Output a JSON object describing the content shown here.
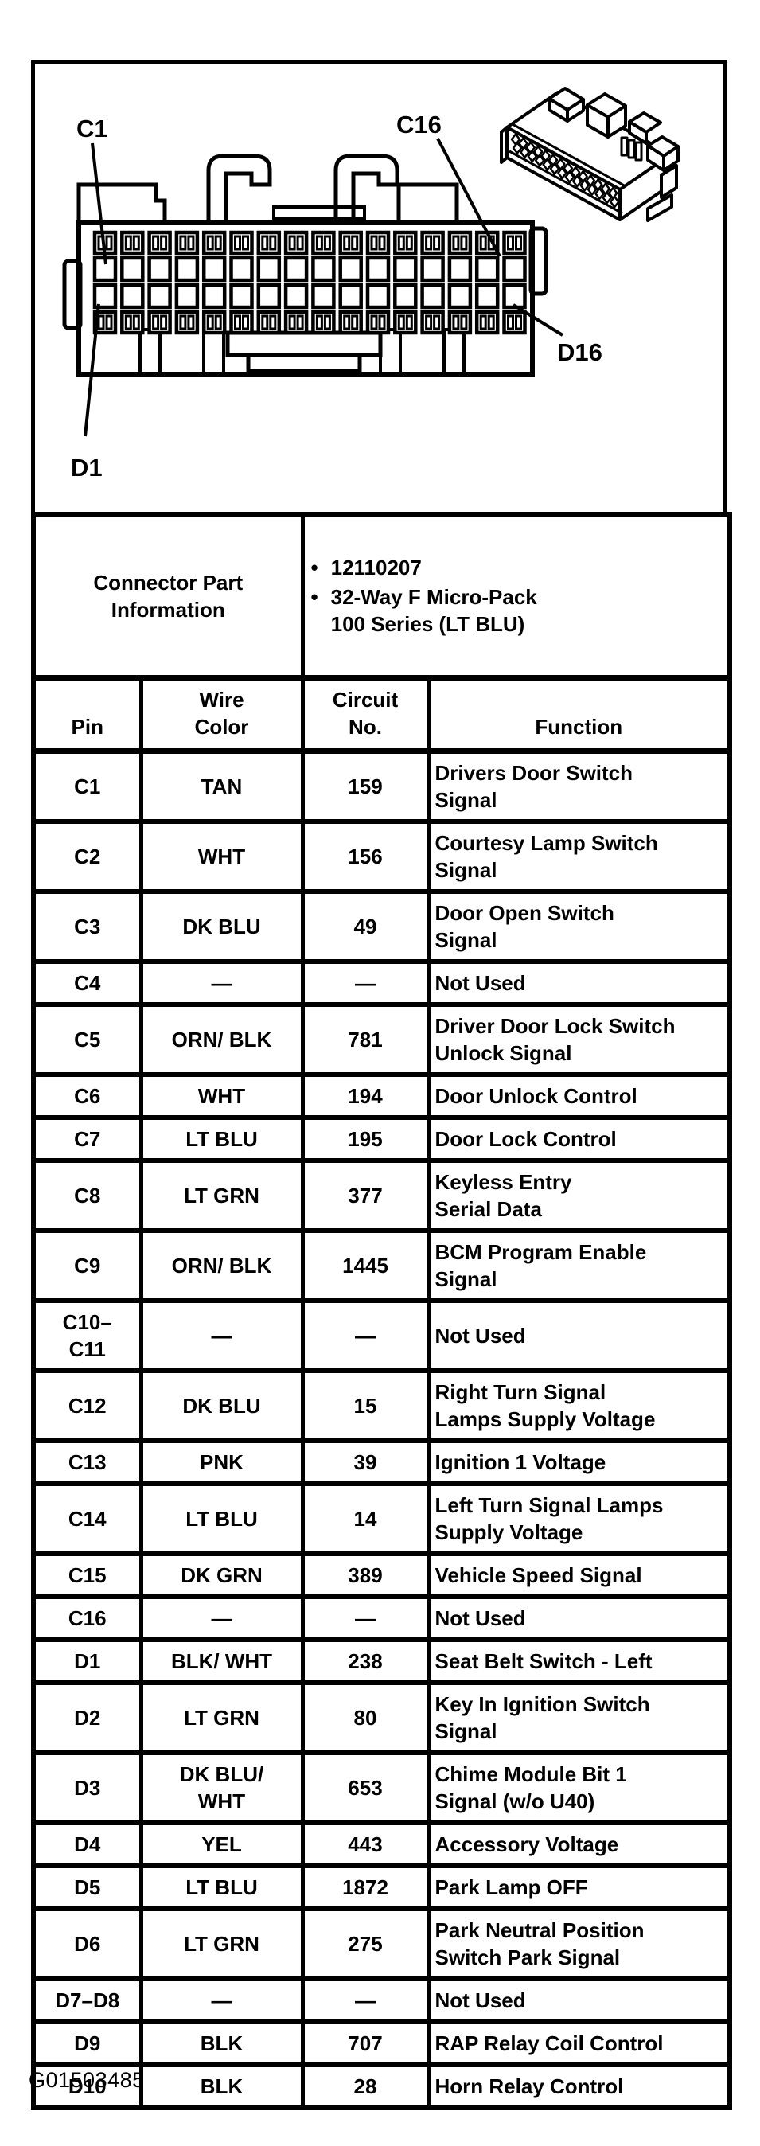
{
  "figure": {
    "labels": {
      "c1": "C1",
      "c16": "C16",
      "d1": "D1",
      "d16": "D16"
    }
  },
  "part_info": {
    "title": "Connector Part\nInformation",
    "bullet": "•",
    "bullets": [
      "12110207",
      "32-Way F Micro-Pack\n100 Series (LT BLU)"
    ]
  },
  "table": {
    "columns": [
      "Pin",
      "Wire\nColor",
      "Circuit\nNo.",
      "Function"
    ],
    "rows": [
      {
        "pin": "C1",
        "wire": "TAN",
        "circuit": "159",
        "function": "Drivers Door Switch\nSignal"
      },
      {
        "pin": "C2",
        "wire": "WHT",
        "circuit": "156",
        "function": "Courtesy Lamp Switch\nSignal"
      },
      {
        "pin": "C3",
        "wire": "DK BLU",
        "circuit": "49",
        "function": "Door Open Switch\nSignal"
      },
      {
        "pin": "C4",
        "wire": "—",
        "circuit": "—",
        "function": "Not Used"
      },
      {
        "pin": "C5",
        "wire": "ORN/ BLK",
        "circuit": "781",
        "function": "Driver Door Lock Switch\nUnlock Signal"
      },
      {
        "pin": "C6",
        "wire": "WHT",
        "circuit": "194",
        "function": "Door Unlock Control"
      },
      {
        "pin": "C7",
        "wire": "LT BLU",
        "circuit": "195",
        "function": "Door Lock Control"
      },
      {
        "pin": "C8",
        "wire": "LT GRN",
        "circuit": "377",
        "function": "Keyless Entry\nSerial Data"
      },
      {
        "pin": "C9",
        "wire": "ORN/ BLK",
        "circuit": "1445",
        "function": "BCM Program Enable\nSignal"
      },
      {
        "pin": "C10–\nC11",
        "wire": "—",
        "circuit": "—",
        "function": "Not Used"
      },
      {
        "pin": "C12",
        "wire": "DK BLU",
        "circuit": "15",
        "function": "Right Turn Signal\nLamps Supply Voltage"
      },
      {
        "pin": "C13",
        "wire": "PNK",
        "circuit": "39",
        "function": "Ignition 1 Voltage"
      },
      {
        "pin": "C14",
        "wire": "LT BLU",
        "circuit": "14",
        "function": "Left Turn Signal Lamps\nSupply Voltage"
      },
      {
        "pin": "C15",
        "wire": "DK GRN",
        "circuit": "389",
        "function": "Vehicle Speed Signal"
      },
      {
        "pin": "C16",
        "wire": "—",
        "circuit": "—",
        "function": "Not Used"
      },
      {
        "pin": "D1",
        "wire": "BLK/ WHT",
        "circuit": "238",
        "function": "Seat Belt Switch - Left"
      },
      {
        "pin": "D2",
        "wire": "LT GRN",
        "circuit": "80",
        "function": "Key In Ignition Switch\nSignal"
      },
      {
        "pin": "D3",
        "wire": "DK BLU/\nWHT",
        "circuit": "653",
        "function": "Chime Module Bit 1\nSignal (w/o U40)"
      },
      {
        "pin": "D4",
        "wire": "YEL",
        "circuit": "443",
        "function": "Accessory Voltage"
      },
      {
        "pin": "D5",
        "wire": "LT BLU",
        "circuit": "1872",
        "function": "Park Lamp OFF"
      },
      {
        "pin": "D6",
        "wire": "LT GRN",
        "circuit": "275",
        "function": "Park Neutral Position\nSwitch Park Signal"
      },
      {
        "pin": "D7–D8",
        "wire": "—",
        "circuit": "—",
        "function": "Not Used"
      },
      {
        "pin": "D9",
        "wire": "BLK",
        "circuit": "707",
        "function": "RAP Relay Coil Control"
      },
      {
        "pin": "D10",
        "wire": "BLK",
        "circuit": "28",
        "function": "Horn Relay Control"
      }
    ]
  },
  "caption": "G01503485",
  "colors": {
    "ink": "#000000",
    "paper": "#ffffff"
  }
}
